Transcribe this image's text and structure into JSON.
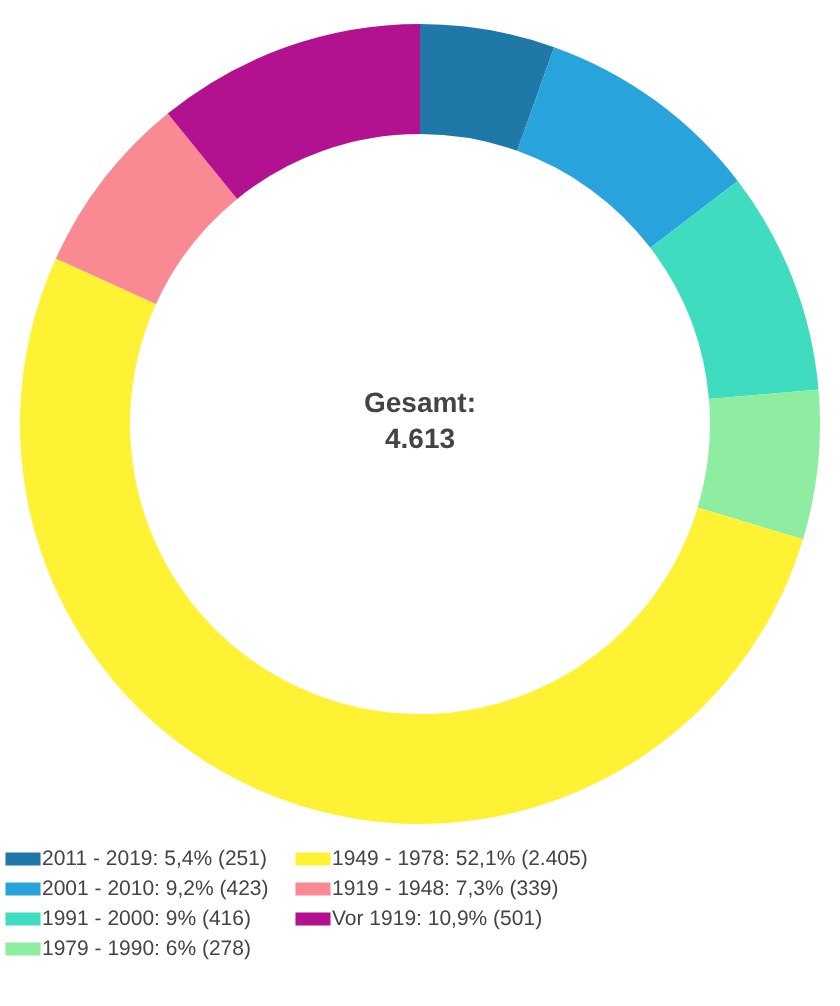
{
  "chart_data": {
    "type": "donut",
    "categories": [
      "2011 - 2019: 5,4% (251)",
      "2001 - 2010: 9,2% (423)",
      "1991 - 2000: 9% (416)",
      "1979 - 1990: 6% (278)",
      "1949 - 1978: 52,1% (2.405)",
      "1919 - 1948: 7,3% (339)",
      "Vor 1919: 10,9% (501)"
    ],
    "values": [
      251,
      423,
      416,
      278,
      2405,
      339,
      501
    ],
    "colors": [
      "#1f78a8",
      "#29a3dc",
      "#3fdcc0",
      "#8eeda0",
      "#fff234",
      "#f98a94",
      "#b2128f"
    ],
    "annotations": [
      "Gesamt:",
      "4.613"
    ],
    "legend": "bottom"
  }
}
